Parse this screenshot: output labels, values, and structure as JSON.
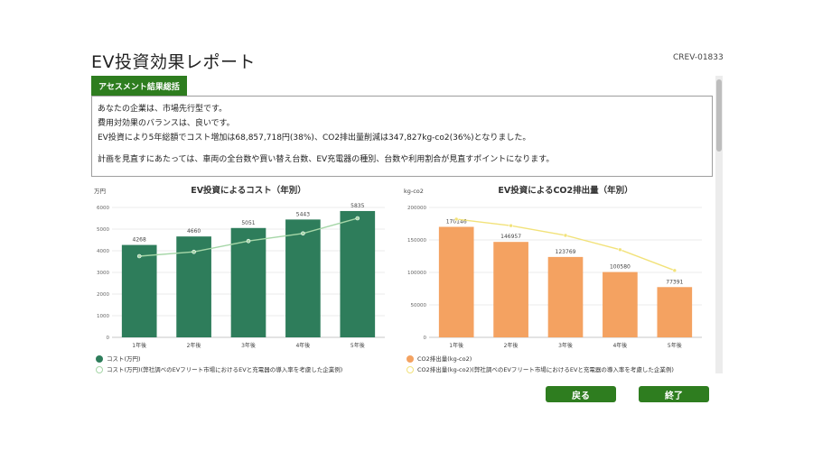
{
  "page": {
    "title": "EV投資効果レポート",
    "report_code": "CREV-01833"
  },
  "assessment": {
    "tab_label": "アセスメント結果総括",
    "lines": [
      "あなたの企業は、市場先行型です。",
      "費用対効果のバランスは、良いです。",
      "EV投資により5年総額でコスト増加は68,857,718円(38%)、CO2排出量削減は347,827kg-co2(36%)となりました。",
      "計画を見直すにあたっては、車両の全台数や買い替え台数、EV充電器の種別、台数や利用割合が見直すポイントになります。"
    ]
  },
  "chart_data": [
    {
      "type": "bar",
      "title": "EV投資によるコスト（年別）",
      "ylabel": "万円",
      "categories": [
        "1年後",
        "2年後",
        "3年後",
        "4年後",
        "5年後"
      ],
      "ylim": [
        0,
        6000
      ],
      "yticks": [
        0,
        1000,
        2000,
        3000,
        4000,
        5000,
        6000
      ],
      "series": [
        {
          "name": "コスト(万円)",
          "kind": "bar",
          "color": "#2e7d5b",
          "values": [
            4268,
            4660,
            5051,
            5443,
            5835
          ],
          "show_labels": true
        },
        {
          "name": "コスト(万円)(弊社調べのEVフリート市場におけるEVと充電器の導入率を考慮した企業例)",
          "kind": "line",
          "color": "#a5d6a7",
          "values": [
            3750,
            3950,
            4450,
            4800,
            5500
          ]
        }
      ],
      "legend_position": "bottom-left"
    },
    {
      "type": "bar",
      "title": "EV投資によるCO2排出量（年別）",
      "ylabel": "kg-co2",
      "categories": [
        "1年後",
        "2年後",
        "3年後",
        "4年後",
        "5年後"
      ],
      "ylim": [
        0,
        200000
      ],
      "yticks": [
        0,
        50000,
        100000,
        150000,
        200000
      ],
      "series": [
        {
          "name": "CO2排出量(kg-co2)",
          "kind": "bar",
          "color": "#f4a261",
          "values": [
            170146,
            146957,
            123769,
            100580,
            77391
          ],
          "show_labels": true
        },
        {
          "name": "CO2排出量(kg-co2)(弊社調べのEVフリート市場におけるEVと充電器の導入率を考慮した企業例)",
          "kind": "line",
          "color": "#f2e27a",
          "values": [
            182000,
            172000,
            157000,
            135000,
            103000
          ]
        }
      ],
      "legend_position": "bottom-left"
    }
  ],
  "buttons": {
    "back": "戻る",
    "finish": "終了"
  }
}
